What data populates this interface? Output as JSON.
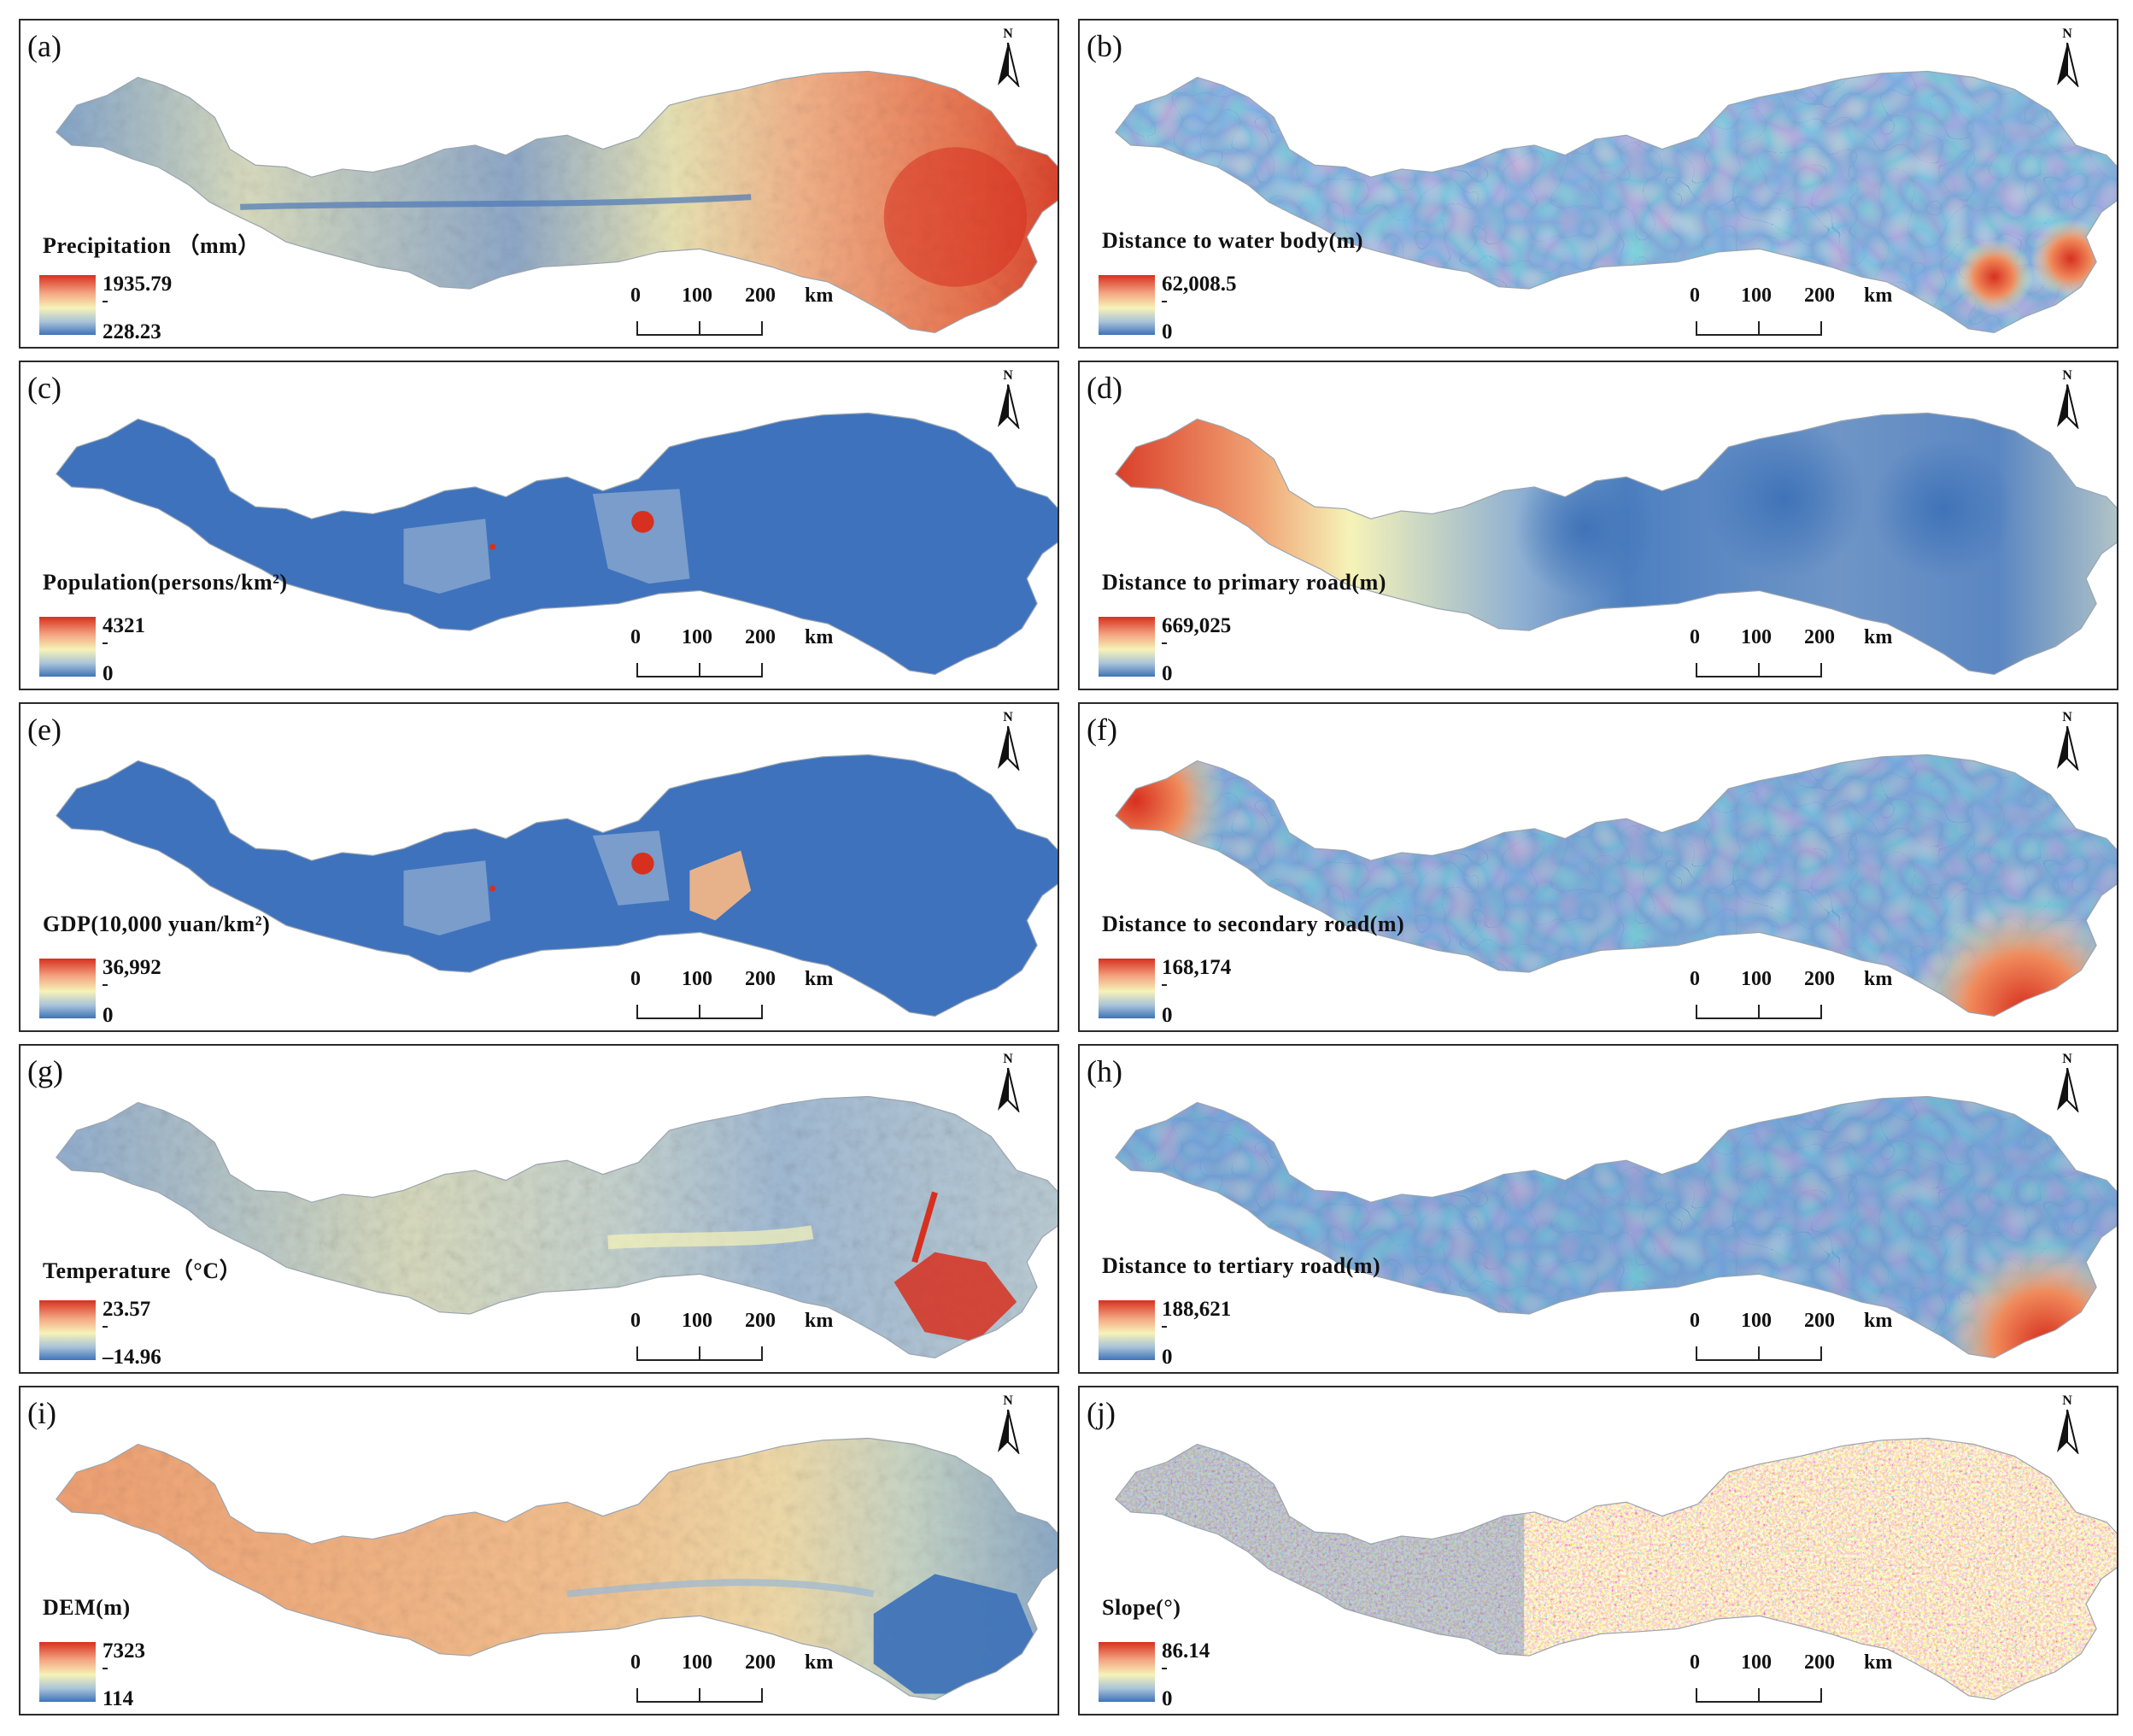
{
  "colors": {
    "ramp_high": "#d7301f",
    "ramp_mid": "#f6f3b8",
    "ramp_low": "#3f73b8",
    "border": "#2a2a2a",
    "text": "#111111"
  },
  "north_label": "N",
  "scale": {
    "ticks": [
      "0",
      "100",
      "200"
    ],
    "unit": "km"
  },
  "panels": [
    {
      "label": "(a)",
      "title": "Precipitation （mm）",
      "legend_max": "1935.79",
      "legend_min": "228.23",
      "style": "precip"
    },
    {
      "label": "(b)",
      "title": "Distance to water body(m)",
      "legend_max": "62,008.5",
      "legend_min": "0",
      "style": "water"
    },
    {
      "label": "(c)",
      "title": "Population(persons/km²)",
      "legend_max": "4321",
      "legend_min": "0",
      "style": "pop"
    },
    {
      "label": "(d)",
      "title": "Distance to primary road(m)",
      "legend_max": "669,025",
      "legend_min": "0",
      "style": "primary"
    },
    {
      "label": "(e)",
      "title": "GDP(10,000 yuan/km²)",
      "legend_max": "36,992",
      "legend_min": "0",
      "style": "gdp"
    },
    {
      "label": "(f)",
      "title": "Distance to secondary road(m)",
      "legend_max": "168,174",
      "legend_min": "0",
      "style": "secondary"
    },
    {
      "label": "(g)",
      "title": "Temperature（°C）",
      "legend_max": "23.57",
      "legend_min": "–14.96",
      "style": "temp"
    },
    {
      "label": "(h)",
      "title": "Distance to tertiary road(m)",
      "legend_max": "188,621",
      "legend_min": "0",
      "style": "tertiary"
    },
    {
      "label": "(i)",
      "title": "DEM(m)",
      "legend_max": "7323",
      "legend_min": "114",
      "style": "dem"
    },
    {
      "label": "(j)",
      "title": "Slope(°)",
      "legend_max": "86.14",
      "legend_min": "0",
      "style": "slope"
    }
  ]
}
